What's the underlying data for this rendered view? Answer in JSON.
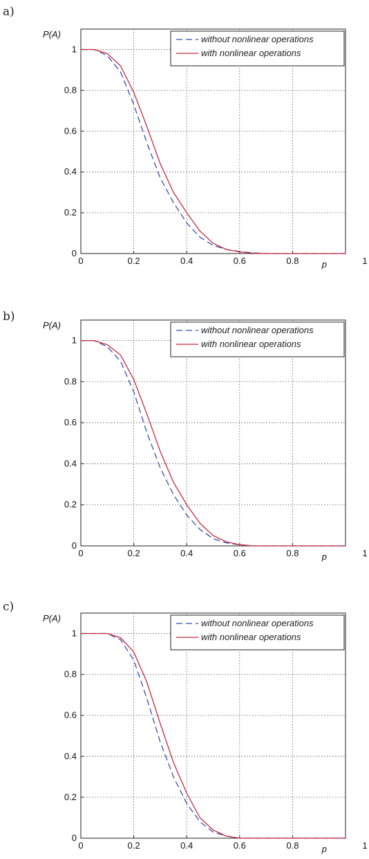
{
  "chart_data": [
    {
      "type": "line",
      "panel_label": "a)",
      "xlabel": "p",
      "ylabel": "P(A)",
      "xlim": [
        0,
        1
      ],
      "ylim": [
        0,
        1.1
      ],
      "xticks": [
        0,
        0.2,
        0.4,
        0.6,
        0.8,
        1
      ],
      "xtick_labels": [
        "0",
        "0.2",
        "0.4",
        "0.6",
        "0.8",
        "1"
      ],
      "yticks": [
        0,
        0.2,
        0.4,
        0.6,
        0.8,
        1
      ],
      "ytick_labels": [
        "0",
        "0.2",
        "0.4",
        "0.6",
        "0.8",
        "1"
      ],
      "grid": true,
      "legend_position": "top-right",
      "series": [
        {
          "name": "without nonlinear operations",
          "style": "dashed",
          "color": "#3a4aa8",
          "x": [
            0,
            0.05,
            0.1,
            0.15,
            0.2,
            0.25,
            0.3,
            0.35,
            0.4,
            0.45,
            0.5,
            0.55,
            0.6,
            0.65,
            0.7,
            0.8,
            0.9,
            1.0
          ],
          "y": [
            1.0,
            1.0,
            0.97,
            0.89,
            0.73,
            0.54,
            0.37,
            0.25,
            0.15,
            0.08,
            0.04,
            0.02,
            0.01,
            0.003,
            0.0,
            0.0,
            0.0,
            0.0
          ]
        },
        {
          "name": "with nonlinear operations",
          "style": "solid",
          "color": "#c8283c",
          "x": [
            0,
            0.05,
            0.1,
            0.15,
            0.2,
            0.25,
            0.3,
            0.35,
            0.4,
            0.45,
            0.5,
            0.55,
            0.6,
            0.65,
            0.7,
            0.8,
            0.9,
            1.0
          ],
          "y": [
            1.0,
            1.0,
            0.98,
            0.92,
            0.79,
            0.62,
            0.44,
            0.3,
            0.2,
            0.11,
            0.05,
            0.02,
            0.008,
            0.002,
            0.0,
            0.0,
            0.0,
            0.0
          ]
        }
      ]
    },
    {
      "type": "line",
      "panel_label": "b)",
      "xlabel": "p",
      "ylabel": "P(A)",
      "xlim": [
        0,
        1
      ],
      "ylim": [
        0,
        1.1
      ],
      "xticks": [
        0,
        0.2,
        0.4,
        0.6,
        0.8,
        1
      ],
      "xtick_labels": [
        "0",
        "0.2",
        "0.4",
        "0.6",
        "0.8",
        "1"
      ],
      "yticks": [
        0,
        0.2,
        0.4,
        0.6,
        0.8,
        1
      ],
      "ytick_labels": [
        "0",
        "0.2",
        "0.4",
        "0.6",
        "0.8",
        "1"
      ],
      "grid": true,
      "legend_position": "top-right",
      "series": [
        {
          "name": "without nonlinear operations",
          "style": "dashed",
          "color": "#3a4aa8",
          "x": [
            0,
            0.05,
            0.1,
            0.15,
            0.2,
            0.25,
            0.3,
            0.35,
            0.4,
            0.45,
            0.5,
            0.55,
            0.6,
            0.65,
            0.7,
            0.8,
            0.9,
            1.0
          ],
          "y": [
            1.0,
            1.0,
            0.97,
            0.9,
            0.75,
            0.55,
            0.38,
            0.25,
            0.15,
            0.08,
            0.035,
            0.015,
            0.005,
            0.0,
            0.0,
            0.0,
            0.0,
            0.0
          ]
        },
        {
          "name": "with nonlinear operations",
          "style": "solid",
          "color": "#c8283c",
          "x": [
            0,
            0.05,
            0.1,
            0.15,
            0.2,
            0.25,
            0.3,
            0.35,
            0.4,
            0.45,
            0.5,
            0.55,
            0.6,
            0.65,
            0.7,
            0.8,
            0.9,
            1.0
          ],
          "y": [
            1.0,
            1.0,
            0.98,
            0.93,
            0.81,
            0.64,
            0.46,
            0.31,
            0.2,
            0.11,
            0.05,
            0.02,
            0.006,
            0.0,
            0.0,
            0.0,
            0.0,
            0.0
          ]
        }
      ]
    },
    {
      "type": "line",
      "panel_label": "c)",
      "xlabel": "p",
      "ylabel": "P(A)",
      "xlim": [
        0,
        1
      ],
      "ylim": [
        0,
        1.1
      ],
      "xticks": [
        0,
        0.2,
        0.4,
        0.6,
        0.8,
        1
      ],
      "xtick_labels": [
        "0",
        "0.2",
        "0.4",
        "0.6",
        "0.8",
        "1"
      ],
      "yticks": [
        0,
        0.2,
        0.4,
        0.6,
        0.8,
        1
      ],
      "ytick_labels": [
        "0",
        "0.2",
        "0.4",
        "0.6",
        "0.8",
        "1"
      ],
      "grid": true,
      "legend_position": "top-right",
      "series": [
        {
          "name": "without nonlinear operations",
          "style": "dashed",
          "color": "#3a4aa8",
          "x": [
            0,
            0.05,
            0.1,
            0.15,
            0.2,
            0.25,
            0.3,
            0.35,
            0.4,
            0.45,
            0.5,
            0.55,
            0.6,
            0.65,
            0.7,
            0.8,
            0.9,
            1.0
          ],
          "y": [
            1.0,
            1.0,
            1.0,
            0.97,
            0.87,
            0.68,
            0.47,
            0.3,
            0.17,
            0.08,
            0.03,
            0.01,
            0.0,
            0.0,
            0.0,
            0.0,
            0.0,
            0.0
          ]
        },
        {
          "name": "with nonlinear operations",
          "style": "solid",
          "color": "#c8283c",
          "x": [
            0,
            0.05,
            0.1,
            0.15,
            0.2,
            0.25,
            0.3,
            0.35,
            0.4,
            0.45,
            0.5,
            0.55,
            0.6,
            0.65,
            0.7,
            0.8,
            0.9,
            1.0
          ],
          "y": [
            1.0,
            1.0,
            1.0,
            0.98,
            0.91,
            0.76,
            0.56,
            0.37,
            0.22,
            0.1,
            0.04,
            0.01,
            0.0,
            0.0,
            0.0,
            0.0,
            0.0,
            0.0
          ]
        }
      ]
    }
  ]
}
